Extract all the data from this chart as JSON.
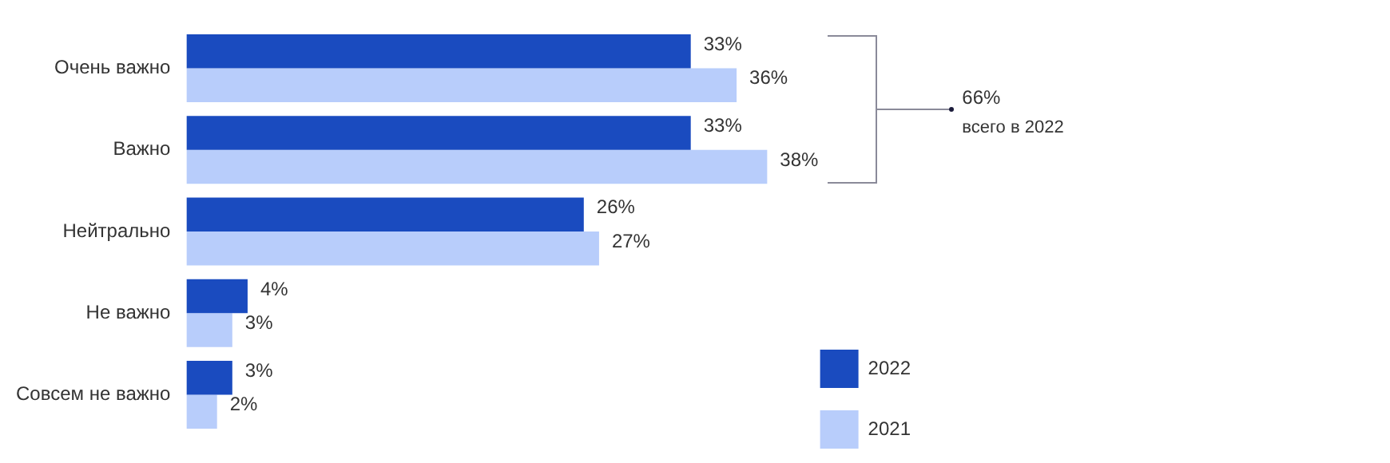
{
  "chart_data": {
    "type": "bar",
    "orientation": "horizontal",
    "categories": [
      "Очень важно",
      "Важно",
      "Нейтрально",
      "Не важно",
      "Совсем не важно"
    ],
    "series": [
      {
        "name": "2022",
        "color": "#1a4bbf",
        "values": [
          33,
          33,
          26,
          4,
          3
        ],
        "value_labels": [
          "33%",
          "33%",
          "26%",
          "4%",
          "3%"
        ]
      },
      {
        "name": "2021",
        "color": "#b8cdfb",
        "values": [
          36,
          38,
          27,
          3,
          2
        ],
        "value_labels": [
          "36%",
          "38%",
          "27%",
          "3%",
          "2%"
        ]
      }
    ],
    "annotations": [
      "66%",
      "всего в 2022"
    ],
    "legend": "bottom right",
    "grid": false
  }
}
